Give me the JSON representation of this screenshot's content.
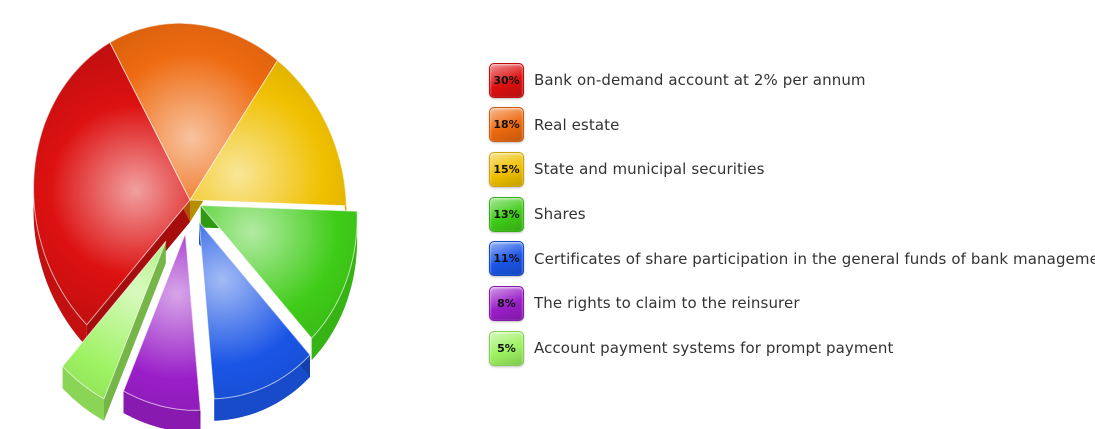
{
  "chart_data": {
    "type": "pie",
    "title": "",
    "legend_position": "right",
    "slices": [
      {
        "label": "Bank on-demand account at 2% per annum",
        "value": 30,
        "value_label": "30%",
        "color": "#dd1111"
      },
      {
        "label": "Real estate",
        "value": 18,
        "value_label": "18%",
        "color": "#ee6a10"
      },
      {
        "label": "State and municipal securities",
        "value": 15,
        "value_label": "15%",
        "color": "#f0c000"
      },
      {
        "label": "Shares",
        "value": 13,
        "value_label": "13%",
        "color": "#3fcc18"
      },
      {
        "label": "Certificates of share participation in the general funds of bank management",
        "value": 11,
        "value_label": "11%",
        "color": "#1a55e6"
      },
      {
        "label": "The rights to claim to the reinsurer",
        "value": 8,
        "value_label": "8%",
        "color": "#9a1ec8"
      },
      {
        "label": "Account payment systems for prompt payment",
        "value": 5,
        "value_label": "5%",
        "color": "#9df261"
      }
    ]
  }
}
